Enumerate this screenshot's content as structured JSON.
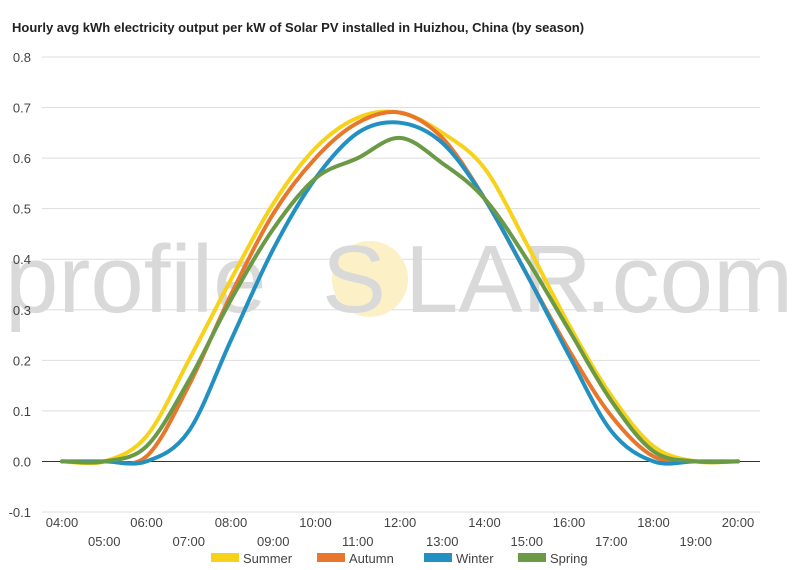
{
  "chart_data": {
    "type": "line",
    "title": "Hourly avg kWh electricity output per kW of Solar PV installed in Huizhou, China (by season)",
    "watermark": [
      "profile",
      "S",
      "LAR",
      ".com"
    ],
    "xlabel": "",
    "ylabel": "",
    "ylim": [
      -0.1,
      0.8
    ],
    "yticks": [
      "-0.1",
      "0.0",
      "0.1",
      "0.2",
      "0.3",
      "0.4",
      "0.5",
      "0.6",
      "0.7",
      "0.8"
    ],
    "x": [
      "04:00",
      "05:00",
      "06:00",
      "07:00",
      "08:00",
      "09:00",
      "10:00",
      "11:00",
      "12:00",
      "13:00",
      "14:00",
      "15:00",
      "16:00",
      "17:00",
      "18:00",
      "19:00",
      "20:00"
    ],
    "grid": true,
    "legend_position": "bottom",
    "series": [
      {
        "name": "Summer",
        "color": "#f7d21b",
        "values": [
          0.0,
          0.0,
          0.05,
          0.2,
          0.36,
          0.51,
          0.62,
          0.68,
          0.69,
          0.65,
          0.58,
          0.43,
          0.27,
          0.13,
          0.03,
          0.0,
          0.0
        ]
      },
      {
        "name": "Autumn",
        "color": "#e8772e",
        "values": [
          0.0,
          0.0,
          0.01,
          0.15,
          0.33,
          0.49,
          0.6,
          0.67,
          0.69,
          0.64,
          0.52,
          0.37,
          0.22,
          0.09,
          0.01,
          0.0,
          0.0
        ]
      },
      {
        "name": "Winter",
        "color": "#2291c2",
        "values": [
          0.0,
          0.0,
          0.0,
          0.06,
          0.24,
          0.42,
          0.56,
          0.65,
          0.67,
          0.63,
          0.52,
          0.37,
          0.21,
          0.06,
          0.0,
          0.0,
          0.0
        ]
      },
      {
        "name": "Spring",
        "color": "#6a9a45",
        "values": [
          0.0,
          0.0,
          0.03,
          0.16,
          0.32,
          0.46,
          0.56,
          0.6,
          0.64,
          0.59,
          0.52,
          0.4,
          0.26,
          0.12,
          0.02,
          0.0,
          0.0
        ]
      }
    ]
  }
}
